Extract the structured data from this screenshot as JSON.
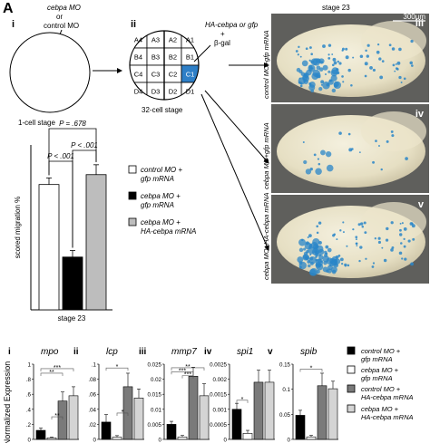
{
  "panel_letter": "A",
  "top": {
    "sub_i": "i",
    "sub_ii": "ii",
    "mo_label": {
      "line1": "cebpa MO",
      "line2": "or",
      "line3": "control MO"
    },
    "one_cell_label": "1-cell stage",
    "thirty_two_label": "32-cell stage",
    "inject_label": {
      "line1": "HA-cebpa or gfp",
      "line2": "+",
      "line3": "β-gal"
    },
    "blastomeres": [
      [
        "A4",
        "A3",
        "A2",
        "A1"
      ],
      [
        "B4",
        "B3",
        "B2",
        "B1"
      ],
      [
        "C4",
        "C3",
        "C2",
        "C1"
      ],
      [
        "D4",
        "D3",
        "D2",
        "D1"
      ]
    ],
    "highlight_cell": "C1",
    "highlight_color": "#2e7fc7"
  },
  "embryos": {
    "stage_label": "stage 23",
    "scale_bar": "300μm",
    "panels": [
      {
        "roman": "iii",
        "label": "control MO+gfp mRNA"
      },
      {
        "roman": "iv",
        "label": "cebpa MO+gfp mRNA"
      },
      {
        "roman": "v",
        "label": "cebpa MO+HA-cebpa mRNA"
      }
    ],
    "stain_color": "#2a86c8"
  },
  "migration_chart": {
    "ylabel": "scored migration %",
    "xlabel": "stage 23",
    "p_values": [
      "P = .678",
      "P < .001",
      "P < .001"
    ],
    "legend": [
      {
        "line1": "control MO +",
        "line2": "gfp mRNA",
        "fill": "#ffffff"
      },
      {
        "line1": "cebpa MO +",
        "line2": "gfp mRNA",
        "fill": "#000000"
      },
      {
        "line1": "cebpa MO +",
        "line2": "HA-cebpa mRNA",
        "fill": "#bdbdbd"
      }
    ]
  },
  "chart_data": [
    {
      "type": "bar",
      "title": "",
      "ylabel": "scored migration %",
      "xlabel": "stage 23",
      "ylim": [
        0,
        0.5
      ],
      "series": [
        {
          "name": "control MO + gfp mRNA",
          "values": [
            0.38
          ],
          "error": [
            0.02
          ]
        },
        {
          "name": "cebpa MO + gfp mRNA",
          "values": [
            0.16
          ],
          "error": [
            0.02
          ]
        },
        {
          "name": "cebpa MO + HA-cebpa mRNA",
          "values": [
            0.41
          ],
          "error": [
            0.03
          ]
        }
      ]
    },
    {
      "type": "bar",
      "title": "mpo",
      "roman": "i",
      "ylabel": "Normalized Expression",
      "ylim": [
        0,
        1
      ],
      "yticks": [
        "0",
        ".2",
        ".4",
        ".6",
        ".8",
        "1"
      ],
      "values": [
        0.12,
        0.02,
        0.51,
        0.58
      ],
      "error": [
        0.03,
        0.01,
        0.12,
        0.12
      ],
      "sig": [
        {
          "from": 0,
          "to": 2,
          "label": "**",
          "level": 0.88
        },
        {
          "from": 0,
          "to": 3,
          "label": "***",
          "level": 0.94
        },
        {
          "from": 1,
          "to": 2,
          "label": "**",
          "level": 0.3
        }
      ]
    },
    {
      "type": "bar",
      "title": "lcp",
      "roman": "ii",
      "ylim": [
        0,
        0.1
      ],
      "yticks": [
        "0",
        ".02",
        ".04",
        ".06",
        ".08",
        ".1"
      ],
      "values": [
        0.023,
        0.003,
        0.07,
        0.055
      ],
      "error": [
        0.01,
        0.002,
        0.018,
        0.012
      ],
      "sig": [
        {
          "from": 0,
          "to": 2,
          "label": "*",
          "level": 0.095
        },
        {
          "from": 1,
          "to": 2,
          "label": "*",
          "level": 0.035
        }
      ]
    },
    {
      "type": "bar",
      "title": "mmp7",
      "roman": "iii",
      "ylim": [
        0,
        0.025
      ],
      "yticks": [
        "0",
        "0.005",
        "0.01",
        "0.015",
        "0.02",
        "0.025"
      ],
      "values": [
        0.005,
        0.0008,
        0.021,
        0.0145
      ],
      "error": [
        0.001,
        0.0005,
        0.003,
        0.004
      ],
      "sig": [
        {
          "from": 0,
          "to": 2,
          "label": "***",
          "level": 0.0225
        },
        {
          "from": 0,
          "to": 3,
          "label": "**",
          "level": 0.0238
        },
        {
          "from": 1,
          "to": 2,
          "label": "***",
          "level": 0.0212
        }
      ]
    },
    {
      "type": "bar",
      "title": "spi1",
      "roman": "iv",
      "ylim": [
        0,
        0.0025
      ],
      "yticks": [
        "0",
        "0.0005",
        "0.001",
        "0.0015",
        "0.002",
        "0.0025"
      ],
      "values": [
        0.001,
        0.0002,
        0.0019,
        0.0019
      ],
      "error": [
        0.0002,
        0.0001,
        0.0004,
        0.0004
      ],
      "sig": [
        {
          "from": 0,
          "to": 1,
          "label": "*",
          "level": 0.0013
        }
      ]
    },
    {
      "type": "bar",
      "title": "spib",
      "roman": "v",
      "ylim": [
        0,
        0.15
      ],
      "yticks": [
        "0",
        "0.05",
        "0.1",
        "0.15"
      ],
      "values": [
        0.048,
        0.005,
        0.107,
        0.101
      ],
      "error": [
        0.01,
        0.003,
        0.025,
        0.015
      ],
      "sig": [
        {
          "from": 0,
          "to": 2,
          "label": "*",
          "level": 0.14
        }
      ]
    }
  ],
  "bottom_legend": [
    {
      "line1": "control MO +",
      "line2": "gfp mRNA",
      "fill": "#000000"
    },
    {
      "line1": "cebpa MO +",
      "line2": "gfp mRNA",
      "fill": "#ffffff"
    },
    {
      "line1": "control MO +",
      "line2": "HA-cebpa mRNA",
      "fill": "#7a7a7a"
    },
    {
      "line1": "cebpa MO +",
      "line2": "HA-cebpa mRNA",
      "fill": "#d4d4d4"
    }
  ],
  "bar_fills_bottom": [
    "#000000",
    "#ffffff",
    "#7a7a7a",
    "#d4d4d4"
  ],
  "bar_fills_mig": [
    "#ffffff",
    "#000000",
    "#bdbdbd"
  ]
}
